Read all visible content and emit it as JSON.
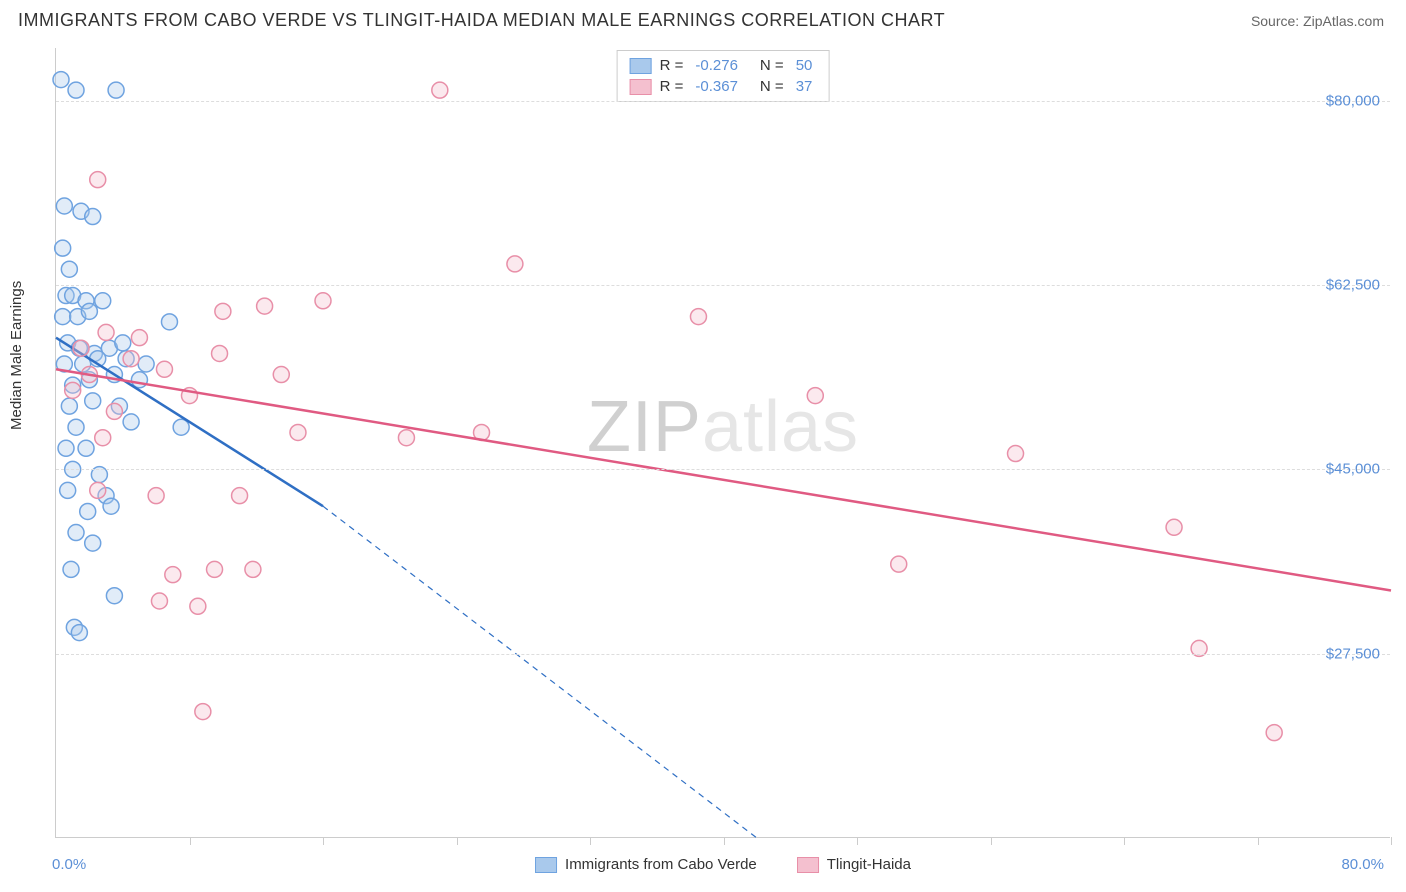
{
  "header": {
    "title": "IMMIGRANTS FROM CABO VERDE VS TLINGIT-HAIDA MEDIAN MALE EARNINGS CORRELATION CHART",
    "source": "Source: ZipAtlas.com"
  },
  "watermark": {
    "brand_prefix": "ZIP",
    "brand_suffix": "atlas"
  },
  "chart": {
    "type": "scatter",
    "ylabel": "Median Male Earnings",
    "xlim": [
      0,
      80
    ],
    "ylim": [
      10000,
      85000
    ],
    "x_axis_left_label": "0.0%",
    "x_axis_right_label": "80.0%",
    "xticks": [
      8,
      16,
      24,
      32,
      40,
      48,
      56,
      64,
      72,
      80
    ],
    "yticks": [
      {
        "value": 27500,
        "label": "$27,500"
      },
      {
        "value": 45000,
        "label": "$45,000"
      },
      {
        "value": 62500,
        "label": "$62,500"
      },
      {
        "value": 80000,
        "label": "$80,000"
      }
    ],
    "background_color": "#ffffff",
    "grid_color": "#dddddd",
    "axis_color": "#cccccc",
    "marker_radius": 8,
    "marker_stroke_width": 1.5,
    "marker_fill_opacity": 0.35,
    "trend_line_width": 2.5,
    "series": [
      {
        "name": "Immigrants from Cabo Verde",
        "color_stroke": "#6fa3e0",
        "color_fill": "#a9c9ec",
        "trend_color": "#2f6fc4",
        "R": "-0.276",
        "N": "50",
        "trend": {
          "x1": 0,
          "y1": 57500,
          "x2": 16,
          "y2": 41500
        },
        "trend_extrap": {
          "x1": 16,
          "y1": 41500,
          "x2": 42,
          "y2": 10000
        },
        "points": [
          [
            0.3,
            82000
          ],
          [
            1.2,
            81000
          ],
          [
            3.6,
            81000
          ],
          [
            0.5,
            70000
          ],
          [
            1.5,
            69500
          ],
          [
            2.2,
            69000
          ],
          [
            0.4,
            66000
          ],
          [
            0.8,
            64000
          ],
          [
            0.6,
            61500
          ],
          [
            1.0,
            61500
          ],
          [
            1.8,
            61000
          ],
          [
            2.8,
            61000
          ],
          [
            0.4,
            59500
          ],
          [
            1.3,
            59500
          ],
          [
            2.0,
            60000
          ],
          [
            6.8,
            59000
          ],
          [
            0.7,
            57000
          ],
          [
            1.4,
            56500
          ],
          [
            2.3,
            56000
          ],
          [
            3.2,
            56500
          ],
          [
            4.0,
            57000
          ],
          [
            0.5,
            55000
          ],
          [
            1.6,
            55000
          ],
          [
            2.5,
            55500
          ],
          [
            4.2,
            55500
          ],
          [
            5.4,
            55000
          ],
          [
            1.0,
            53000
          ],
          [
            2.0,
            53500
          ],
          [
            3.5,
            54000
          ],
          [
            5.0,
            53500
          ],
          [
            0.8,
            51000
          ],
          [
            2.2,
            51500
          ],
          [
            3.8,
            51000
          ],
          [
            1.2,
            49000
          ],
          [
            4.5,
            49500
          ],
          [
            7.5,
            49000
          ],
          [
            0.6,
            47000
          ],
          [
            1.8,
            47000
          ],
          [
            1.0,
            45000
          ],
          [
            2.6,
            44500
          ],
          [
            0.7,
            43000
          ],
          [
            3.0,
            42500
          ],
          [
            1.9,
            41000
          ],
          [
            3.3,
            41500
          ],
          [
            1.2,
            39000
          ],
          [
            2.2,
            38000
          ],
          [
            0.9,
            35500
          ],
          [
            3.5,
            33000
          ],
          [
            1.1,
            30000
          ],
          [
            1.4,
            29500
          ]
        ]
      },
      {
        "name": "Tlingit-Haida",
        "color_stroke": "#e88fa8",
        "color_fill": "#f4c0cf",
        "trend_color": "#e05a82",
        "R": "-0.367",
        "N": "37",
        "trend": {
          "x1": 0,
          "y1": 54500,
          "x2": 80,
          "y2": 33500
        },
        "points": [
          [
            23.0,
            81000
          ],
          [
            2.5,
            72500
          ],
          [
            27.5,
            64500
          ],
          [
            16.0,
            61000
          ],
          [
            10.0,
            60000
          ],
          [
            12.5,
            60500
          ],
          [
            38.5,
            59500
          ],
          [
            3.0,
            58000
          ],
          [
            5.0,
            57500
          ],
          [
            1.5,
            56500
          ],
          [
            4.5,
            55500
          ],
          [
            9.8,
            56000
          ],
          [
            2.0,
            54000
          ],
          [
            6.5,
            54500
          ],
          [
            13.5,
            54000
          ],
          [
            1.0,
            52500
          ],
          [
            8.0,
            52000
          ],
          [
            45.5,
            52000
          ],
          [
            3.5,
            50500
          ],
          [
            14.5,
            48500
          ],
          [
            21.0,
            48000
          ],
          [
            25.5,
            48500
          ],
          [
            57.5,
            46500
          ],
          [
            2.5,
            43000
          ],
          [
            6.0,
            42500
          ],
          [
            11.0,
            42500
          ],
          [
            67.0,
            39500
          ],
          [
            50.5,
            36000
          ],
          [
            7.0,
            35000
          ],
          [
            9.5,
            35500
          ],
          [
            11.8,
            35500
          ],
          [
            6.2,
            32500
          ],
          [
            8.5,
            32000
          ],
          [
            68.5,
            28000
          ],
          [
            8.8,
            22000
          ],
          [
            73.0,
            20000
          ],
          [
            2.8,
            48000
          ]
        ]
      }
    ],
    "legend_bottom": [
      {
        "label": "Immigrants from Cabo Verde",
        "series_index": 0
      },
      {
        "label": "Tlingit-Haida",
        "series_index": 1
      }
    ]
  }
}
